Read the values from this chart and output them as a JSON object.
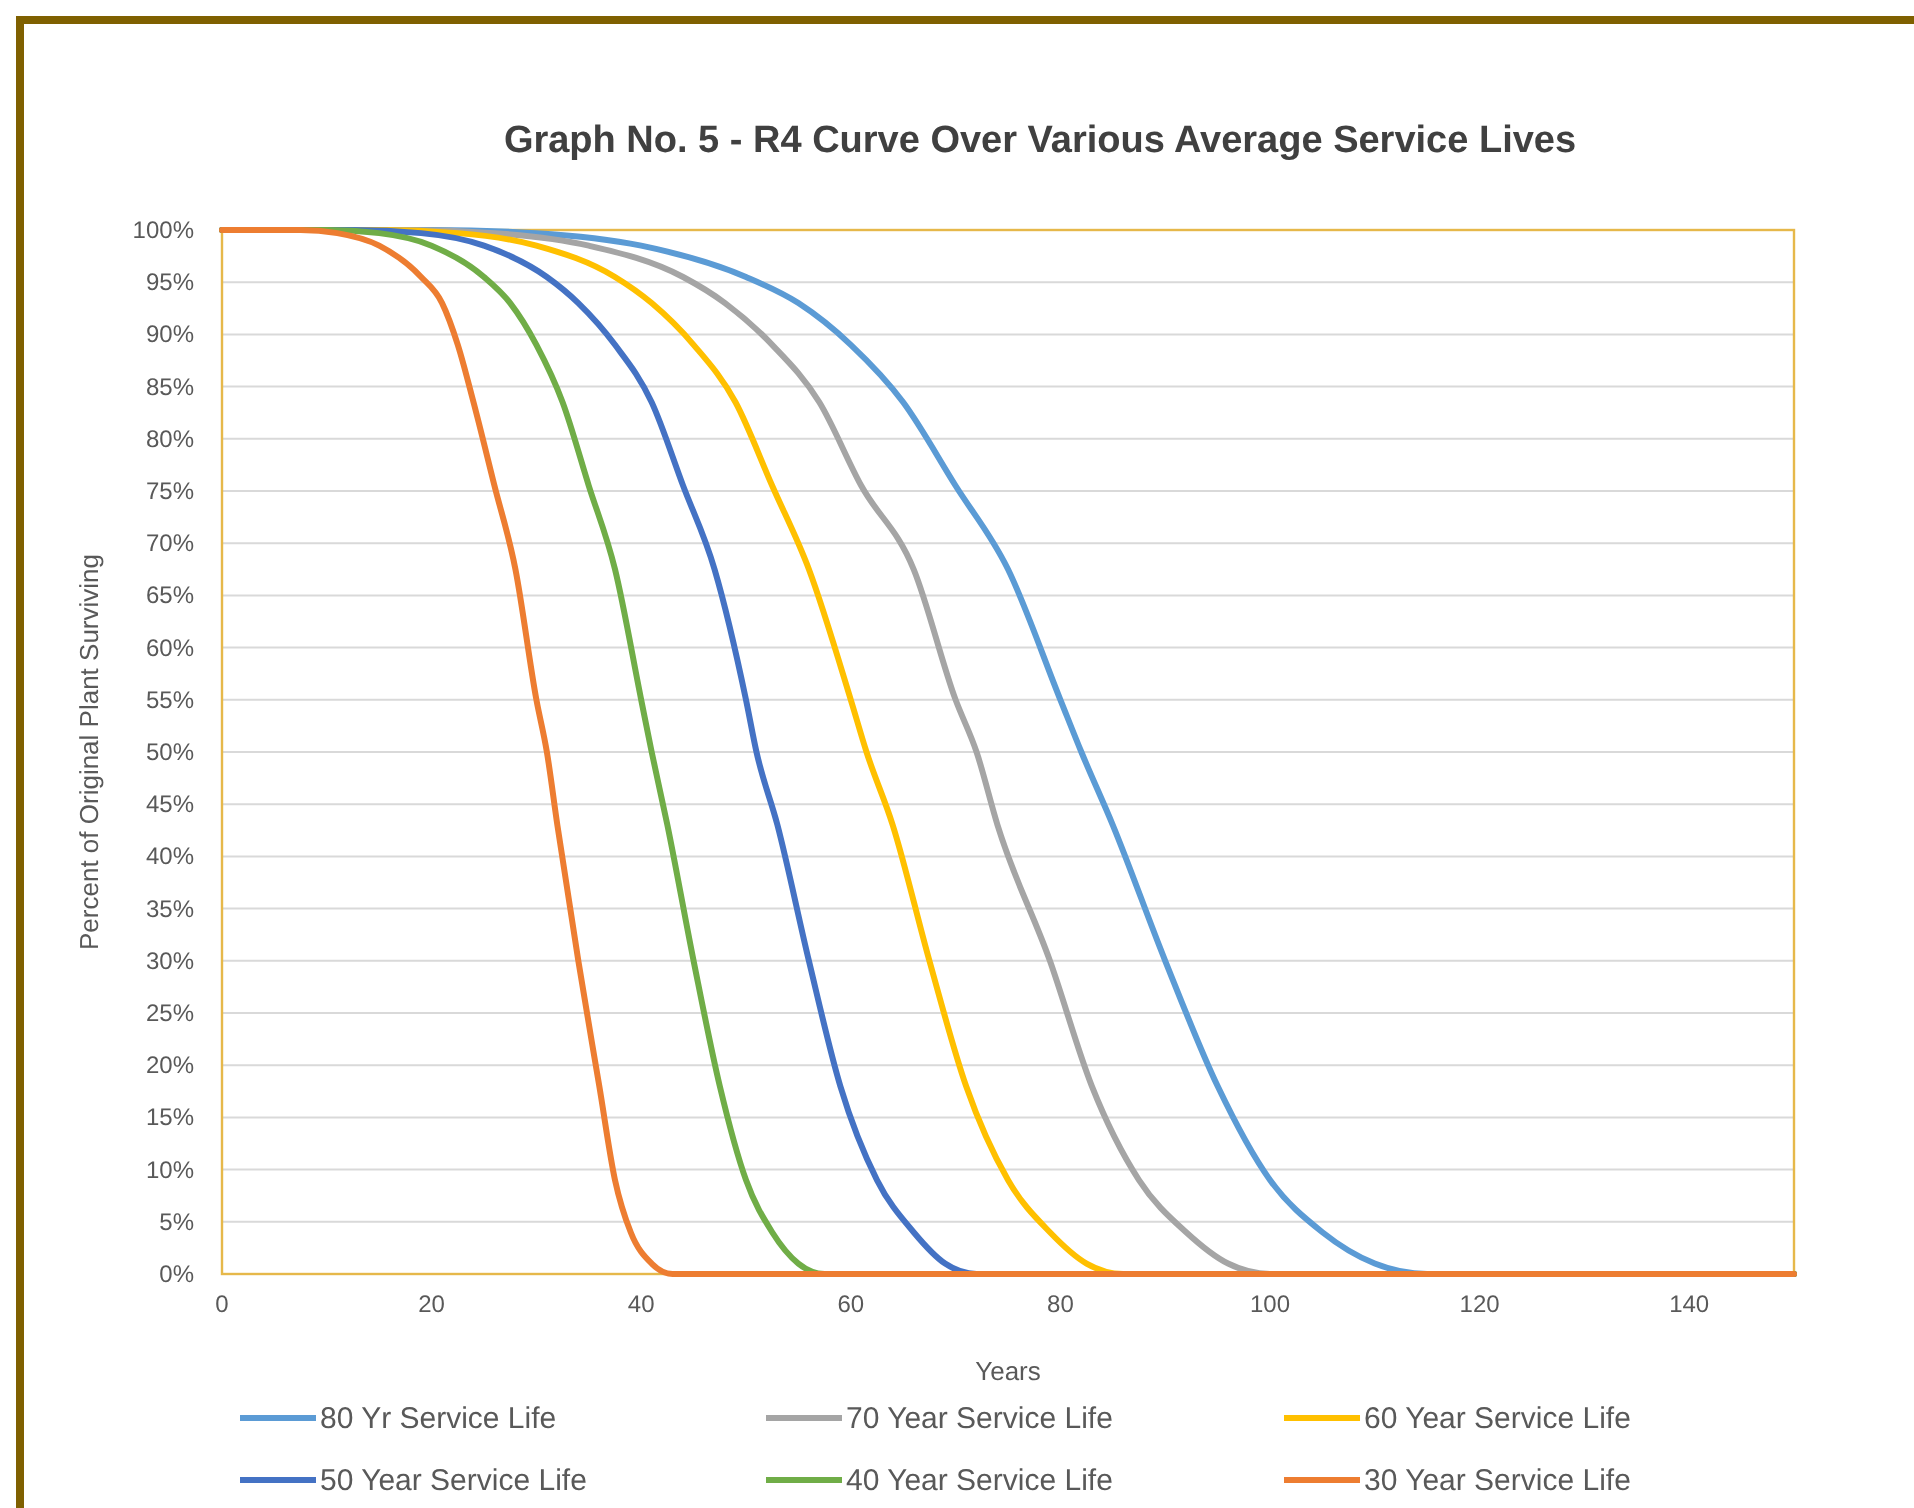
{
  "chart_data": {
    "type": "line",
    "title": "Graph No. 5  -  R4 Curve Over Various Average Service Lives",
    "xlabel": "Years",
    "ylabel": "Percent of Original Plant Surviving",
    "xlim": [
      0,
      150
    ],
    "xticks": [
      0,
      20,
      40,
      60,
      80,
      100,
      120,
      140
    ],
    "ylim": [
      0,
      100
    ],
    "yticks": [
      {
        "value": 0,
        "label": "0%"
      },
      {
        "value": 5,
        "label": "5%"
      },
      {
        "value": 10,
        "label": "10%"
      },
      {
        "value": 15,
        "label": "15%"
      },
      {
        "value": 20,
        "label": "20%"
      },
      {
        "value": 25,
        "label": "25%"
      },
      {
        "value": 30,
        "label": "30%"
      },
      {
        "value": 35,
        "label": "35%"
      },
      {
        "value": 40,
        "label": "40%"
      },
      {
        "value": 45,
        "label": "45%"
      },
      {
        "value": 50,
        "label": "50%"
      },
      {
        "value": 55,
        "label": "55%"
      },
      {
        "value": 60,
        "label": "60%"
      },
      {
        "value": 65,
        "label": "65%"
      },
      {
        "value": 70,
        "label": "70%"
      },
      {
        "value": 75,
        "label": "75%"
      },
      {
        "value": 80,
        "label": "80%"
      },
      {
        "value": 85,
        "label": "85%"
      },
      {
        "value": 90,
        "label": "90%"
      },
      {
        "value": 95,
        "label": "95%"
      },
      {
        "value": 100,
        "label": "100%"
      }
    ],
    "grid": "y",
    "legend": "bottom",
    "marker": "none",
    "line_style": "solid",
    "series": [
      {
        "name": "80 Yr Service Life",
        "color": "#5b9bd5",
        "x": [
          0,
          20,
          30,
          40,
          50,
          55,
          60,
          65,
          70,
          75,
          80,
          82,
          85,
          90,
          95,
          100,
          105,
          110,
          115,
          150
        ],
        "values": [
          100,
          100,
          99.7,
          98.5,
          95.5,
          93,
          89,
          83.5,
          75.5,
          67.5,
          55,
          50,
          43,
          30,
          18,
          9,
          4,
          1,
          0,
          0
        ]
      },
      {
        "name": "70 Year Service Life",
        "color": "#a5a5a5",
        "x": [
          0,
          17.5,
          26,
          35,
          44,
          48,
          52.5,
          57,
          61,
          66,
          70,
          72,
          74,
          79,
          83,
          87.5,
          92,
          96,
          100,
          150
        ],
        "values": [
          100,
          100,
          99.7,
          98.5,
          95.5,
          93,
          89,
          83.5,
          75.5,
          67.5,
          55,
          50,
          43,
          30,
          18,
          9,
          4,
          1,
          0,
          0
        ]
      },
      {
        "name": "60 Year Service Life",
        "color": "#ffc000",
        "x": [
          0,
          15,
          22.5,
          30,
          37.5,
          41,
          45,
          49,
          52.5,
          56,
          60,
          61.5,
          64,
          67.5,
          71,
          75,
          79,
          82.5,
          86,
          150
        ],
        "values": [
          100,
          100,
          99.7,
          98.5,
          95.5,
          93,
          89,
          83.5,
          75.5,
          67.5,
          55,
          50,
          43,
          30,
          18,
          9,
          4,
          1,
          0,
          0
        ]
      },
      {
        "name": "50 Year Service Life",
        "color": "#4472c4",
        "x": [
          0,
          12.5,
          19,
          25,
          31,
          34,
          37.5,
          41,
          44,
          47,
          50,
          51,
          53,
          56,
          59,
          62.5,
          66,
          69,
          72,
          150
        ],
        "values": [
          100,
          100,
          99.7,
          98.5,
          95.5,
          93,
          89,
          83.5,
          75.5,
          67.5,
          55,
          50,
          43,
          30,
          18,
          9,
          4,
          1,
          0,
          0
        ]
      },
      {
        "name": "40 Year Service Life",
        "color": "#70ad47",
        "x": [
          0,
          10,
          15,
          20,
          25,
          27.5,
          30,
          32.5,
          35,
          37.5,
          40,
          41,
          42.5,
          45,
          47.5,
          50,
          52.5,
          55,
          57.5,
          150
        ],
        "values": [
          100,
          100,
          99.7,
          98.5,
          95.5,
          93,
          89,
          83.5,
          75.5,
          67.5,
          55,
          50,
          43,
          30,
          18,
          9,
          4,
          1,
          0,
          0
        ]
      },
      {
        "name": "30 Year Service Life",
        "color": "#ed7d31",
        "x": [
          0,
          7.5,
          11,
          15,
          19,
          21,
          22.5,
          24,
          26,
          28,
          30,
          31,
          32,
          34,
          36,
          37.5,
          39,
          41,
          43,
          150
        ],
        "values": [
          100,
          100,
          99.7,
          98.5,
          95.5,
          93,
          89,
          83.5,
          75.5,
          67.5,
          55,
          50,
          43,
          30,
          18,
          9,
          4,
          1,
          0,
          0
        ]
      }
    ]
  }
}
